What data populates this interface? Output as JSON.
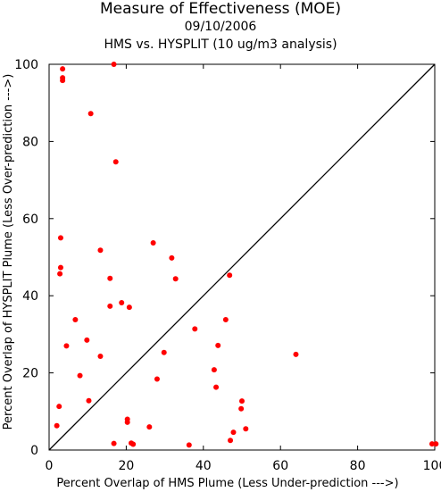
{
  "chart_data": {
    "type": "scatter",
    "title": "Measure of Effectiveness (MOE)",
    "subtitle": "09/10/2006",
    "subtitle2": "HMS vs. HYSPLIT  (10 ug/m3 analysis)",
    "xlabel": "Percent Overlap of HMS Plume (Less Under-prediction --->)",
    "ylabel": "Percent Overlap of HYSPLIT Plume (Less Over-prediction --->)",
    "xlim": [
      0,
      100
    ],
    "ylim": [
      0,
      100
    ],
    "xticks": [
      0,
      20,
      40,
      60,
      80,
      100
    ],
    "yticks": [
      0,
      20,
      40,
      60,
      80,
      100
    ],
    "grid": false,
    "reference_line": "y = x",
    "marker_color": "#ff0000",
    "points": [
      {
        "x": 3.5,
        "y": 98.8
      },
      {
        "x": 3.5,
        "y": 96.5
      },
      {
        "x": 3.5,
        "y": 95.8
      },
      {
        "x": 16.8,
        "y": 100
      },
      {
        "x": 10.8,
        "y": 87.2
      },
      {
        "x": 17.3,
        "y": 74.7
      },
      {
        "x": 3.0,
        "y": 55.0
      },
      {
        "x": 3.0,
        "y": 47.3
      },
      {
        "x": 2.8,
        "y": 45.7
      },
      {
        "x": 13.3,
        "y": 51.8
      },
      {
        "x": 15.8,
        "y": 44.5
      },
      {
        "x": 27.0,
        "y": 53.7
      },
      {
        "x": 31.8,
        "y": 49.8
      },
      {
        "x": 32.8,
        "y": 44.4
      },
      {
        "x": 15.8,
        "y": 37.3
      },
      {
        "x": 18.8,
        "y": 38.2
      },
      {
        "x": 20.8,
        "y": 37.0
      },
      {
        "x": 6.8,
        "y": 33.8
      },
      {
        "x": 4.5,
        "y": 27.0
      },
      {
        "x": 9.8,
        "y": 28.5
      },
      {
        "x": 13.3,
        "y": 24.3
      },
      {
        "x": 8.0,
        "y": 19.3
      },
      {
        "x": 10.3,
        "y": 12.8
      },
      {
        "x": 2.6,
        "y": 11.3
      },
      {
        "x": 2.0,
        "y": 6.3
      },
      {
        "x": 16.8,
        "y": 1.7
      },
      {
        "x": 20.3,
        "y": 8.0
      },
      {
        "x": 20.3,
        "y": 7.2
      },
      {
        "x": 21.3,
        "y": 1.8
      },
      {
        "x": 21.8,
        "y": 1.5
      },
      {
        "x": 26.0,
        "y": 6.0
      },
      {
        "x": 28.0,
        "y": 18.4
      },
      {
        "x": 29.8,
        "y": 25.3
      },
      {
        "x": 37.8,
        "y": 31.4
      },
      {
        "x": 36.3,
        "y": 1.3
      },
      {
        "x": 42.8,
        "y": 20.8
      },
      {
        "x": 43.3,
        "y": 16.3
      },
      {
        "x": 43.8,
        "y": 27.1
      },
      {
        "x": 45.8,
        "y": 33.8
      },
      {
        "x": 46.8,
        "y": 45.3
      },
      {
        "x": 47.0,
        "y": 2.5
      },
      {
        "x": 47.8,
        "y": 4.6
      },
      {
        "x": 50.0,
        "y": 12.7
      },
      {
        "x": 49.8,
        "y": 10.7
      },
      {
        "x": 51.0,
        "y": 5.5
      },
      {
        "x": 64.0,
        "y": 24.8
      },
      {
        "x": 99.3,
        "y": 1.6
      },
      {
        "x": 100.3,
        "y": 1.6
      }
    ]
  }
}
